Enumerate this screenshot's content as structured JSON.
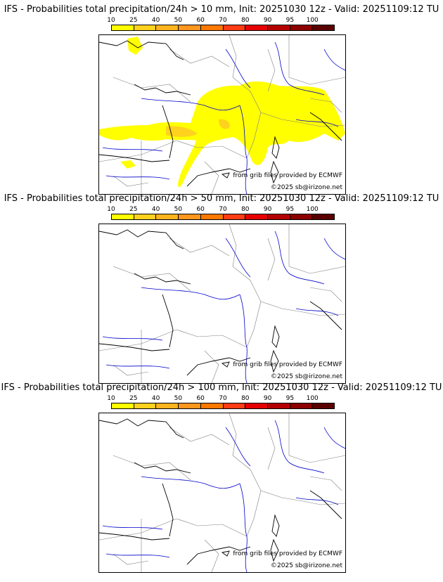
{
  "scale_ticks": [
    "10",
    "25",
    "40",
    "50",
    "60",
    "70",
    "80",
    "90",
    "95",
    "100"
  ],
  "scale_colors": [
    "#ffff00",
    "#ffd21e",
    "#ffb41e",
    "#ff961e",
    "#ff7800",
    "#ff3c14",
    "#e60000",
    "#b40000",
    "#8c0000",
    "#5a0000"
  ],
  "colors": {
    "coast": "#000000",
    "border": "#808080",
    "river": "#0000cc",
    "precip_light": "#ffff00",
    "precip_mid": "#ffd21e"
  },
  "panels": [
    {
      "title": "IFS - Probabilities total precipitation/24h > 10 mm, Init: 20251030 12z - Valid: 20251109:12 TU",
      "source": "from grib files provided by ECMWF",
      "copyright": "©2025 sb@irizone.net"
    },
    {
      "title": "IFS - Probabilities total precipitation/24h > 50 mm, Init: 20251030 12z - Valid: 20251109:12 TU",
      "source": "from grib files provided by ECMWF",
      "copyright": "©2025 sb@irizone.net"
    },
    {
      "title": "IFS - Probabilities total precipitation/24h > 100 mm, Init: 20251030 12z - Valid: 20251109:12 TU",
      "source": "from grib files provided by ECMWF",
      "copyright": "©2025 sb@irizone.net"
    }
  ]
}
